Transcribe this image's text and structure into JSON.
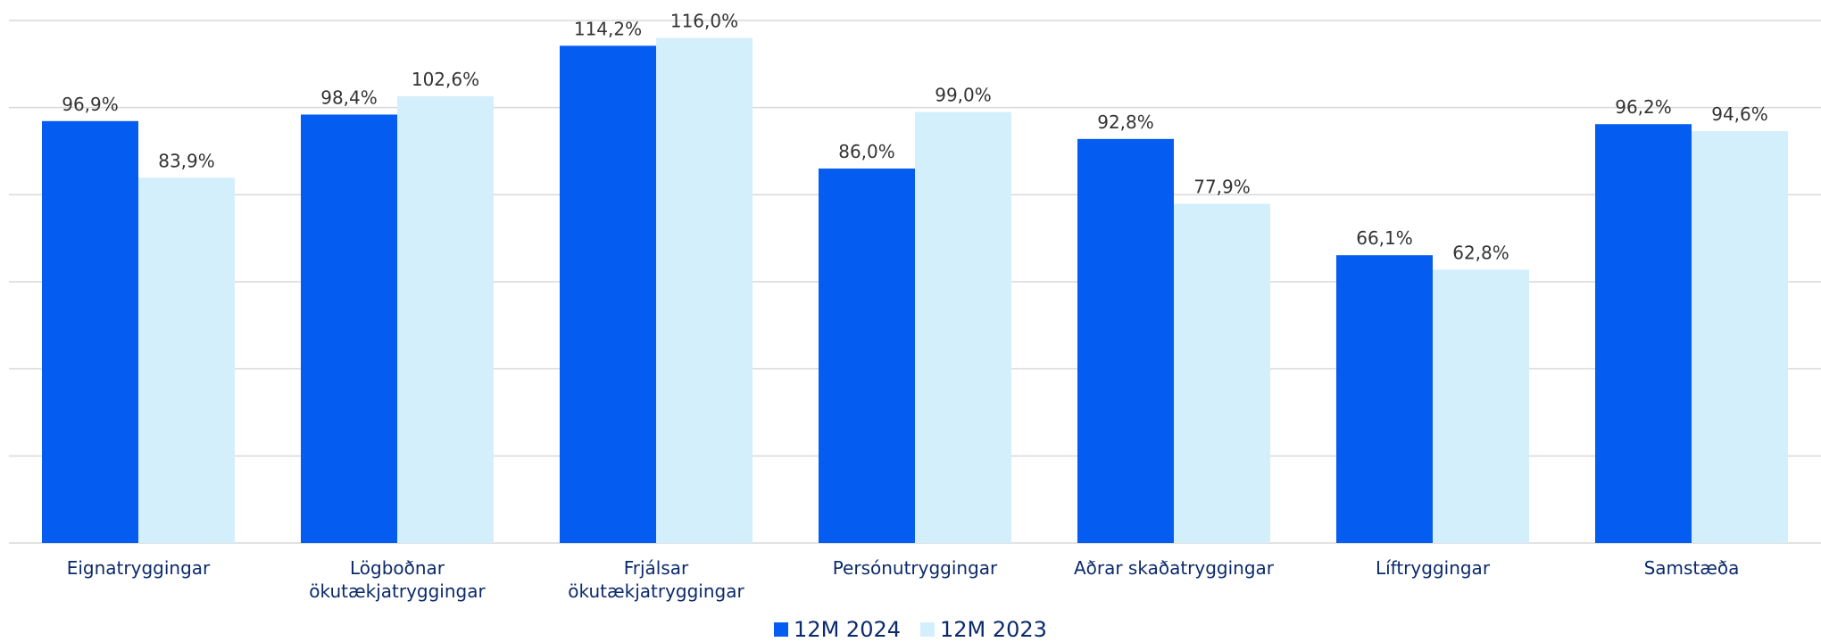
{
  "chart_data": {
    "type": "bar",
    "categories": [
      "Eignatryggingar",
      "Lögboðnar ökutækjatryggingar",
      "Frjálsar ökutækjatryggingar",
      "Persónutryggingar",
      "Aðrar skaðatryggingar",
      "Líftryggingar",
      "Samstæða"
    ],
    "series": [
      {
        "name": "12M 2024",
        "color": "#045cf0",
        "values": [
          96.9,
          98.4,
          114.2,
          86.0,
          92.8,
          66.1,
          96.2
        ],
        "value_labels": [
          "96,9%",
          "98,4%",
          "114,2%",
          "86,0%",
          "92,8%",
          "66,1%",
          "96,2%"
        ]
      },
      {
        "name": "12M 2023",
        "color": "#d4effc",
        "values": [
          83.9,
          102.6,
          116.0,
          99.0,
          77.9,
          62.8,
          94.6
        ],
        "value_labels": [
          "83,9%",
          "102,6%",
          "116,0%",
          "99,0%",
          "77,9%",
          "62,8%",
          "94,6%"
        ]
      }
    ],
    "ylim": [
      0,
      120
    ],
    "yticks": [
      0,
      20,
      40,
      60,
      80,
      100,
      120
    ],
    "grid": true,
    "legend": "bottom"
  }
}
